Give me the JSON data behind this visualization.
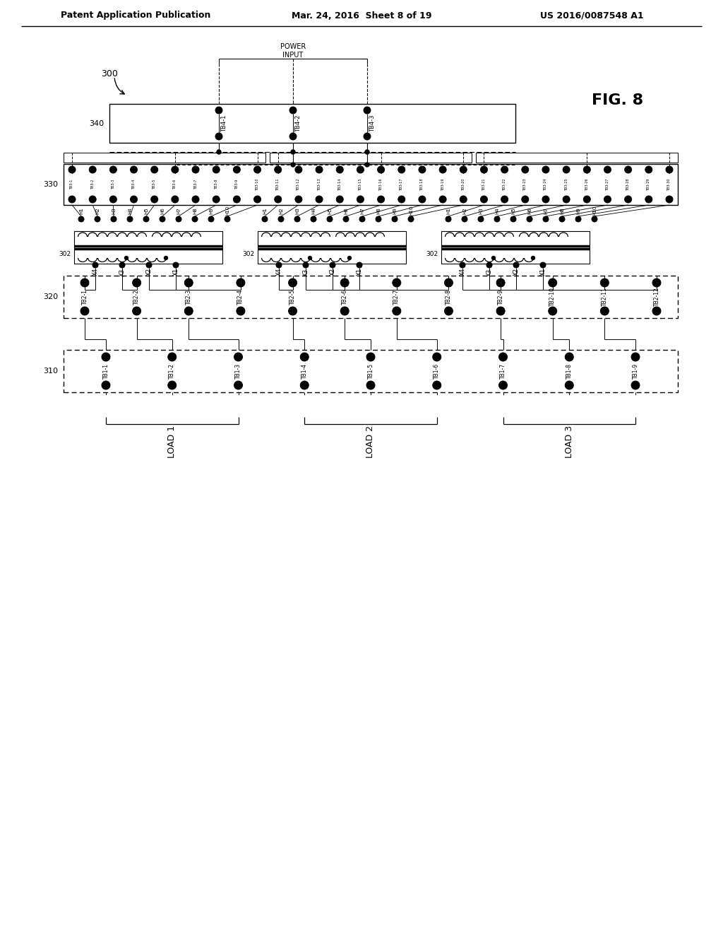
{
  "bg_color": "#ffffff",
  "header_left": "Patent Application Publication",
  "header_mid": "Mar. 24, 2016  Sheet 8 of 19",
  "header_right": "US 2016/0087548 A1",
  "fig_label": "FIG. 8",
  "tb4_labels": [
    "TB4-1",
    "TB4-2",
    "TB4-3"
  ],
  "tb3_labels": [
    "TB3-1",
    "TB3-2",
    "TB3-3",
    "TB3-4",
    "TB3-5",
    "TB3-6",
    "TB3-7",
    "TB3-8",
    "TB3-9",
    "TB3-10",
    "TB3-11",
    "TB3-12",
    "TB3-13",
    "TB3-14",
    "TB3-15",
    "TB3-16",
    "TB3-17",
    "TB3-18",
    "TB3-19",
    "TB3-20",
    "TB3-21",
    "TB3-22",
    "TB3-23",
    "TB3-24",
    "TB3-25",
    "TB3-26",
    "TB3-27",
    "TB3-28",
    "TB3-29",
    "TB3-30"
  ],
  "h_labels": [
    "H1",
    "H2",
    "H3",
    "H4",
    "H5",
    "H6",
    "H7",
    "H8",
    "H9",
    "H10"
  ],
  "x_labels": [
    "X4",
    "X3",
    "X2",
    "X1"
  ],
  "tb2_labels": [
    "TB2-1",
    "TB2-2",
    "TB2-3",
    "TB2-4",
    "TB2-5",
    "TB2-6",
    "TB2-7",
    "TB2-8",
    "TB2-9",
    "TB2-10",
    "TB2-11",
    "TB2-12"
  ],
  "tb1_labels": [
    "TB1-1",
    "TB1-2",
    "TB1-3",
    "TB1-4",
    "TB1-5",
    "TB1-6",
    "TB1-7",
    "TB1-8",
    "TB1-9"
  ],
  "load_labels": [
    "LOAD 1",
    "LOAD 2",
    "LOAD 3"
  ],
  "power_input": "POWER\nINPUT",
  "label_300": "300",
  "label_340": "340",
  "label_330": "330",
  "label_320": "320",
  "label_310": "310",
  "label_302": "302",
  "coil_color": "#000000"
}
